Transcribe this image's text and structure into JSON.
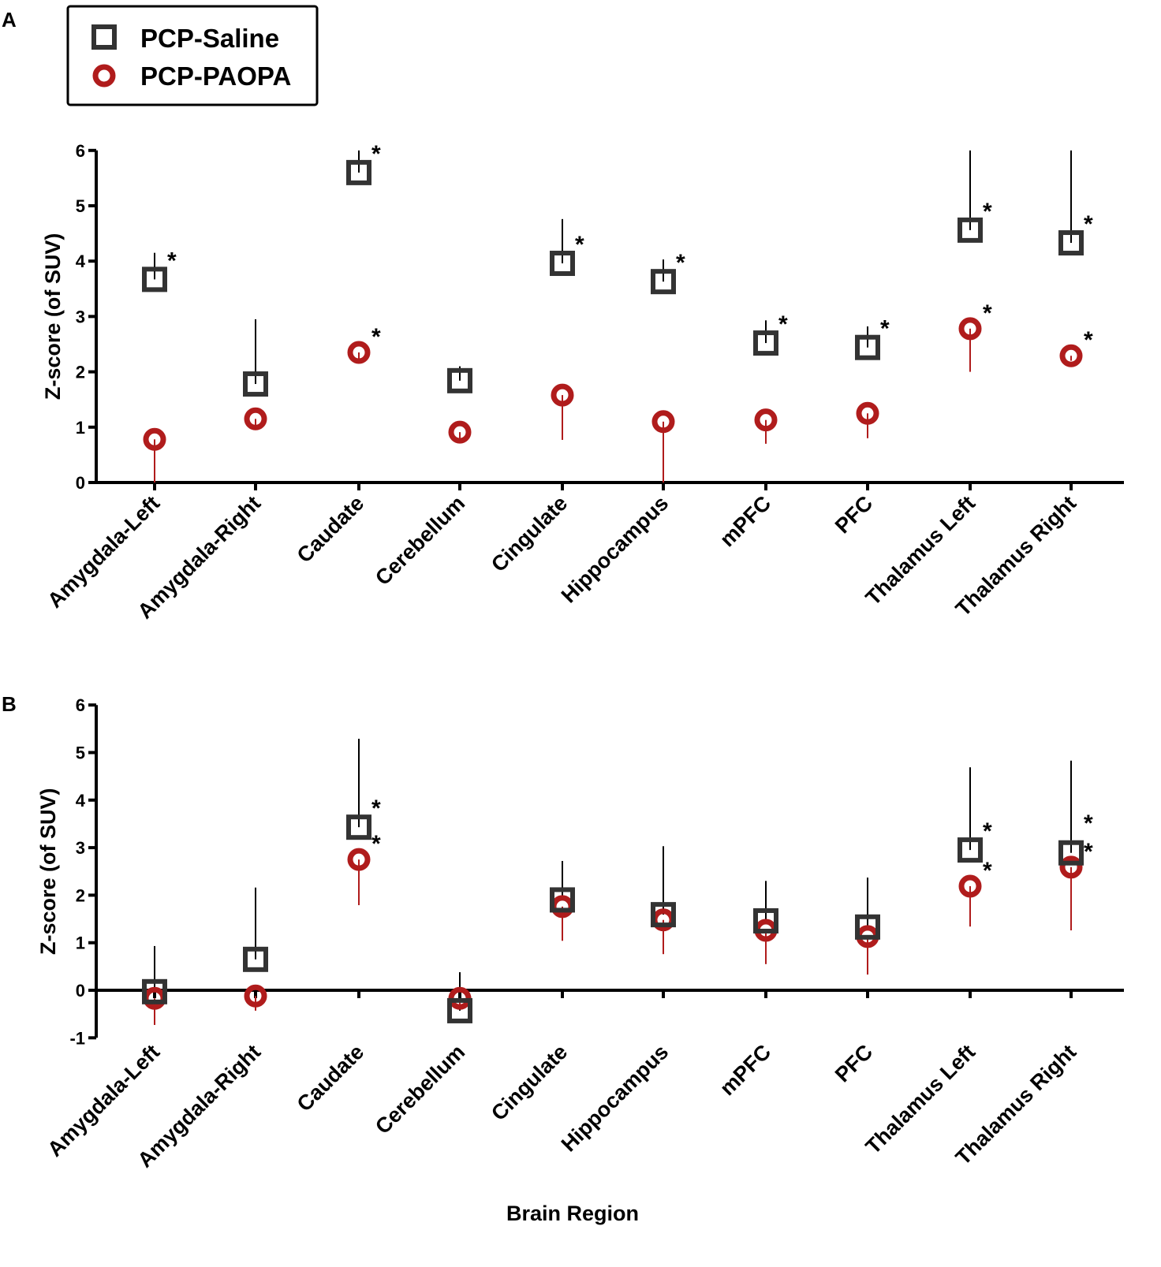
{
  "colors": {
    "saline": "#333333",
    "paopa": "#b01c1c",
    "axis": "#000000"
  },
  "legend": [
    {
      "label": "PCP-Saline",
      "marker": "square"
    },
    {
      "label": "PCP-PAOPA",
      "marker": "circle"
    }
  ],
  "xlabel": "Brain  Region",
  "chart_data": [
    {
      "type": "scatter",
      "panel": "A",
      "ylabel": "Z-score (of SUV)",
      "ylim": [
        0,
        6
      ],
      "yticks": [
        0,
        1,
        2,
        3,
        4,
        5,
        6
      ],
      "categories": [
        "Amygdala-Left",
        "Amygdala-Right",
        "Caudate",
        "Cerebellum",
        "Cingulate",
        "Hippocampus",
        "mPFC",
        "PFC",
        "Thalamus Left",
        "Thalamus Right"
      ],
      "series": [
        {
          "name": "PCP-Saline",
          "values": [
            3.67,
            1.78,
            5.6,
            1.84,
            3.96,
            3.63,
            2.52,
            2.44,
            4.56,
            4.33
          ],
          "error_high": [
            4.15,
            2.95,
            6.0,
            2.1,
            4.76,
            4.03,
            2.93,
            2.82,
            6.0,
            6.0
          ],
          "significant": [
            true,
            false,
            true,
            false,
            true,
            true,
            true,
            true,
            true,
            true
          ]
        },
        {
          "name": "PCP-PAOPA",
          "values": [
            0.78,
            1.15,
            2.35,
            0.91,
            1.58,
            1.1,
            1.13,
            1.25,
            2.78,
            2.29
          ],
          "error_low": [
            0,
            1.0,
            2.2,
            0.8,
            0.77,
            0,
            0.7,
            0.8,
            2.0,
            2.2
          ],
          "significant": [
            false,
            false,
            true,
            false,
            false,
            false,
            false,
            false,
            true,
            true
          ]
        }
      ],
      "annotation": "*"
    },
    {
      "type": "scatter",
      "panel": "B",
      "ylabel": "Z-score (of SUV)",
      "ylim": [
        -1,
        6
      ],
      "yticks": [
        -1,
        0,
        1,
        2,
        3,
        4,
        5,
        6
      ],
      "categories": [
        "Amygdala-Left",
        "Amygdala-Right",
        "Caudate",
        "Cerebellum",
        "Cingulate",
        "Hippocampus",
        "mPFC",
        "PFC",
        "Thalamus Left",
        "Thalamus Right"
      ],
      "series": [
        {
          "name": "PCP-Saline",
          "values": [
            -0.03,
            0.65,
            3.43,
            -0.43,
            1.9,
            1.59,
            1.46,
            1.33,
            2.95,
            2.89
          ],
          "error_high": [
            0.93,
            2.16,
            5.29,
            0.38,
            2.72,
            3.03,
            2.3,
            2.37,
            4.69,
            4.83
          ],
          "significant": [
            false,
            false,
            true,
            false,
            false,
            false,
            false,
            false,
            true,
            true
          ]
        },
        {
          "name": "PCP-PAOPA",
          "values": [
            -0.17,
            -0.12,
            2.75,
            -0.17,
            1.76,
            1.48,
            1.26,
            1.13,
            2.19,
            2.59
          ],
          "error_low": [
            -0.73,
            -0.43,
            1.79,
            -0.3,
            1.04,
            0.76,
            0.55,
            0.33,
            1.34,
            1.26
          ],
          "significant": [
            false,
            false,
            true,
            false,
            false,
            false,
            false,
            false,
            true,
            true
          ]
        }
      ],
      "annotation": "*"
    }
  ]
}
